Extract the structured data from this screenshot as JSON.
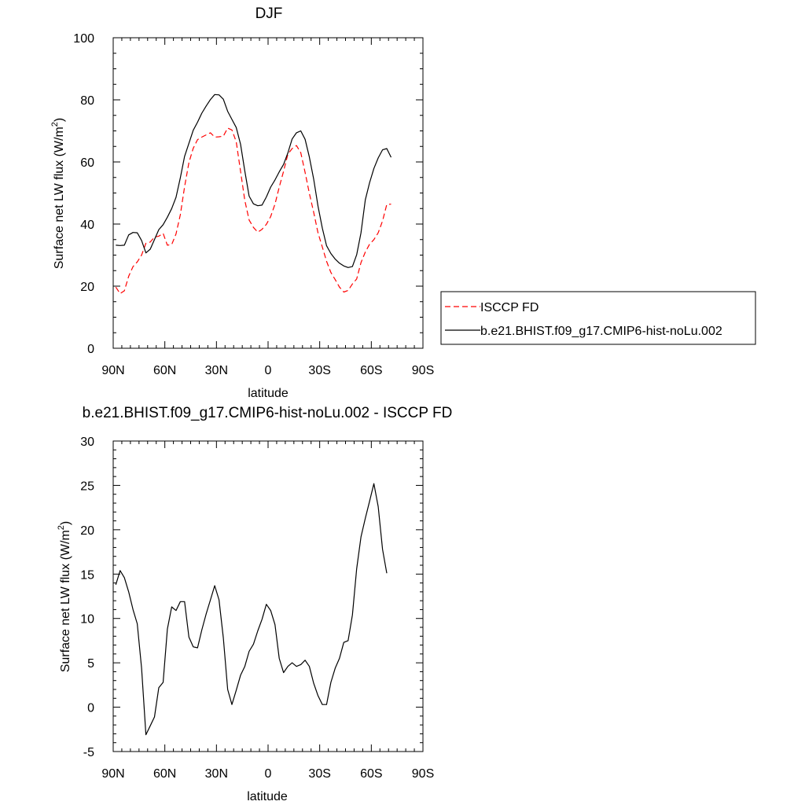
{
  "chart_data": [
    {
      "type": "line",
      "title": "DJF",
      "xlabel": "latitude",
      "ylabel": "Surface net LW flux (W/m²)",
      "ylabel_main": "Surface net LW flux (W/m",
      "ylabel_sup": "2",
      "ylabel_end": ")",
      "xlim": [
        -90,
        90
      ],
      "ylim": [
        0,
        100
      ],
      "xticks": [
        {
          "value": -90,
          "label": "90N"
        },
        {
          "value": -60,
          "label": "60N"
        },
        {
          "value": -30,
          "label": "30N"
        },
        {
          "value": 0,
          "label": "0"
        },
        {
          "value": 30,
          "label": "30S"
        },
        {
          "value": 60,
          "label": "60S"
        },
        {
          "value": 90,
          "label": "90S"
        }
      ],
      "yticks": [
        0,
        20,
        40,
        60,
        80,
        100
      ],
      "legend": {
        "placement": "right"
      },
      "series": [
        {
          "name": "ISCCP FD",
          "color": "#ff0000",
          "dash": "dashed",
          "points": [
            [
              -88.5,
              19.7
            ],
            [
              -86,
              17.6
            ],
            [
              -83.5,
              18.5
            ],
            [
              -81,
              23.2
            ],
            [
              -78.5,
              26.3
            ],
            [
              -76,
              27.8
            ],
            [
              -73.5,
              30.0
            ],
            [
              -71,
              33.8
            ],
            [
              -68.5,
              34.2
            ],
            [
              -66,
              35.8
            ],
            [
              -63.5,
              36.1
            ],
            [
              -61,
              37.0
            ],
            [
              -58.5,
              33.2
            ],
            [
              -56,
              33.4
            ],
            [
              -53.5,
              36.8
            ],
            [
              -51,
              43.0
            ],
            [
              -48.5,
              52.0
            ],
            [
              -46,
              59.8
            ],
            [
              -43.5,
              64.4
            ],
            [
              -41,
              67.2
            ],
            [
              -38.5,
              68.0
            ],
            [
              -36,
              68.7
            ],
            [
              -33.5,
              69.4
            ],
            [
              -31,
              68.0
            ],
            [
              -28.5,
              68.1
            ],
            [
              -26,
              68.3
            ],
            [
              -23.5,
              70.9
            ],
            [
              -21,
              70.3
            ],
            [
              -18.5,
              66.5
            ],
            [
              -16,
              57.0
            ],
            [
              -13.5,
              47.6
            ],
            [
              -11,
              41.3
            ],
            [
              -8.5,
              38.9
            ],
            [
              -6,
              37.4
            ],
            [
              -3.5,
              38.3
            ],
            [
              -1,
              39.9
            ],
            [
              1.5,
              42.4
            ],
            [
              4,
              46.4
            ],
            [
              6.5,
              51.9
            ],
            [
              9,
              57.0
            ],
            [
              11.5,
              62.5
            ],
            [
              14,
              64.3
            ],
            [
              16.5,
              65.3
            ],
            [
              19,
              63.0
            ],
            [
              21.5,
              56.6
            ],
            [
              24,
              49.9
            ],
            [
              26.5,
              43.8
            ],
            [
              29,
              37.2
            ],
            [
              31.5,
              32.6
            ],
            [
              34,
              28.0
            ],
            [
              36.5,
              24.4
            ],
            [
              39,
              22.1
            ],
            [
              41.5,
              19.7
            ],
            [
              44,
              18.1
            ],
            [
              46.5,
              18.6
            ],
            [
              49,
              20.7
            ],
            [
              51.5,
              22.3
            ],
            [
              54,
              27.6
            ],
            [
              56.5,
              31.0
            ],
            [
              59,
              33.5
            ],
            [
              61.5,
              35.0
            ],
            [
              64,
              37.2
            ],
            [
              66.5,
              41.0
            ],
            [
              69,
              46.3
            ],
            [
              71.5,
              46.4
            ]
          ]
        },
        {
          "name": "b.e21.BHIST.f09_g17.CMIP6-hist-noLu.002",
          "color": "#000000",
          "dash": "solid",
          "points": [
            [
              -88.5,
              33.2
            ],
            [
              -86,
              33.1
            ],
            [
              -83.5,
              33.2
            ],
            [
              -81,
              36.5
            ],
            [
              -78.5,
              37.3
            ],
            [
              -76,
              37.2
            ],
            [
              -73.5,
              34.7
            ],
            [
              -71,
              30.7
            ],
            [
              -68.5,
              31.9
            ],
            [
              -66,
              35.0
            ],
            [
              -63.5,
              38.2
            ],
            [
              -61,
              39.8
            ],
            [
              -58.5,
              42.2
            ],
            [
              -56,
              45.0
            ],
            [
              -53.5,
              48.6
            ],
            [
              -51,
              54.9
            ],
            [
              -48.5,
              61.8
            ],
            [
              -46,
              66.0
            ],
            [
              -43.5,
              70.2
            ],
            [
              -41,
              72.8
            ],
            [
              -38.5,
              75.7
            ],
            [
              -36,
              78.0
            ],
            [
              -33.5,
              80.1
            ],
            [
              -31,
              81.7
            ],
            [
              -28.5,
              81.6
            ],
            [
              -26,
              80.2
            ],
            [
              -23.5,
              76.3
            ],
            [
              -21,
              73.7
            ],
            [
              -18.5,
              71.1
            ],
            [
              -16,
              65.7
            ],
            [
              -13.5,
              57.1
            ],
            [
              -11,
              49.0
            ],
            [
              -8.5,
              46.5
            ],
            [
              -6,
              45.9
            ],
            [
              -3.5,
              46.1
            ],
            [
              -1,
              48.7
            ],
            [
              1.5,
              51.9
            ],
            [
              4,
              54.2
            ],
            [
              6.5,
              56.8
            ],
            [
              9,
              59.2
            ],
            [
              11.5,
              62.9
            ],
            [
              14,
              67.4
            ],
            [
              16.5,
              69.4
            ],
            [
              19,
              70.0
            ],
            [
              21.5,
              67.3
            ],
            [
              24,
              61.6
            ],
            [
              26.5,
              54.5
            ],
            [
              29,
              45.8
            ],
            [
              31.5,
              38.7
            ],
            [
              34,
              33.0
            ],
            [
              36.5,
              30.5
            ],
            [
              39,
              28.7
            ],
            [
              41.5,
              27.4
            ],
            [
              44,
              26.5
            ],
            [
              46.5,
              26.0
            ],
            [
              49,
              26.3
            ],
            [
              51.5,
              30.1
            ],
            [
              54,
              37.2
            ],
            [
              56.5,
              47.8
            ],
            [
              59,
              53.3
            ],
            [
              61.5,
              57.9
            ],
            [
              64,
              61.3
            ],
            [
              66.5,
              63.9
            ],
            [
              69,
              64.3
            ],
            [
              71.5,
              61.5
            ]
          ]
        }
      ]
    },
    {
      "type": "line",
      "title": "b.e21.BHIST.f09_g17.CMIP6-hist-noLu.002 - ISCCP FD",
      "xlabel": "latitude",
      "ylabel": "Surface net LW flux (W/m²)",
      "ylabel_main": "Surface net LW flux (W/m",
      "ylabel_sup": "2",
      "ylabel_end": ")",
      "xlim": [
        -90,
        90
      ],
      "ylim": [
        -5,
        30
      ],
      "xticks": [
        {
          "value": -90,
          "label": "90N"
        },
        {
          "value": -60,
          "label": "60N"
        },
        {
          "value": -30,
          "label": "30N"
        },
        {
          "value": 0,
          "label": "0"
        },
        {
          "value": 30,
          "label": "30S"
        },
        {
          "value": 60,
          "label": "60S"
        },
        {
          "value": 90,
          "label": "90S"
        }
      ],
      "yticks": [
        -5,
        0,
        5,
        10,
        15,
        20,
        25,
        30
      ],
      "series": [
        {
          "color": "#000000",
          "dash": "solid",
          "points": [
            [
              -88.5,
              13.8
            ],
            [
              -86,
              15.4
            ],
            [
              -83.5,
              14.6
            ],
            [
              -81,
              13.0
            ],
            [
              -78.5,
              11.0
            ],
            [
              -76,
              9.4
            ],
            [
              -73.5,
              4.4
            ],
            [
              -71,
              -3.1
            ],
            [
              -68.5,
              -2.1
            ],
            [
              -66,
              -1.1
            ],
            [
              -63.5,
              2.2
            ],
            [
              -61,
              2.8
            ],
            [
              -58.5,
              8.8
            ],
            [
              -56,
              11.3
            ],
            [
              -53.5,
              10.9
            ],
            [
              -51,
              11.9
            ],
            [
              -48.5,
              11.9
            ],
            [
              -46,
              7.9
            ],
            [
              -43.5,
              6.8
            ],
            [
              -41,
              6.7
            ],
            [
              -38.5,
              8.7
            ],
            [
              -36,
              10.5
            ],
            [
              -33.5,
              12.1
            ],
            [
              -31,
              13.7
            ],
            [
              -28.5,
              12.1
            ],
            [
              -26,
              7.8
            ],
            [
              -23.5,
              2.0
            ],
            [
              -21,
              0.3
            ],
            [
              -18.5,
              1.9
            ],
            [
              -16,
              3.6
            ],
            [
              -13.5,
              4.6
            ],
            [
              -11,
              6.3
            ],
            [
              -8.5,
              7.1
            ],
            [
              -6,
              8.6
            ],
            [
              -3.5,
              9.9
            ],
            [
              -1,
              11.6
            ],
            [
              1.5,
              10.9
            ],
            [
              4,
              9.3
            ],
            [
              6.5,
              5.5
            ],
            [
              9,
              3.9
            ],
            [
              11.5,
              4.6
            ],
            [
              14,
              5.0
            ],
            [
              16.5,
              4.6
            ],
            [
              19,
              4.8
            ],
            [
              21.5,
              5.3
            ],
            [
              24,
              4.6
            ],
            [
              26.5,
              2.7
            ],
            [
              29,
              1.3
            ],
            [
              31.5,
              0.3
            ],
            [
              34,
              0.3
            ],
            [
              36.5,
              2.8
            ],
            [
              39,
              4.4
            ],
            [
              41.5,
              5.5
            ],
            [
              44,
              7.3
            ],
            [
              46.5,
              7.5
            ],
            [
              49,
              10.4
            ],
            [
              51.5,
              15.6
            ],
            [
              54,
              19.2
            ],
            [
              56.5,
              21.3
            ],
            [
              59,
              23.2
            ],
            [
              61.5,
              25.2
            ],
            [
              64,
              22.6
            ],
            [
              66.5,
              17.8
            ],
            [
              69,
              15.1
            ]
          ]
        }
      ]
    }
  ]
}
